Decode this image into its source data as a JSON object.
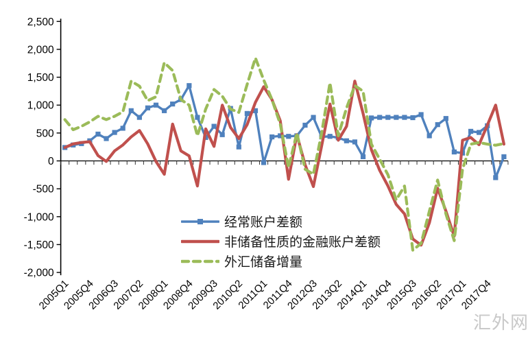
{
  "watermark": "汇外网",
  "chart_data": {
    "type": "line",
    "title": "",
    "xlabel": "",
    "ylabel": "",
    "grid": false,
    "legend_position": "inside-bottom-left",
    "ylim": [
      -2000,
      2500
    ],
    "y_ticks": [
      2500,
      2000,
      1500,
      1000,
      500,
      0,
      -500,
      -1000,
      -1500,
      -2000
    ],
    "x_tick_every": 3,
    "x_tick_labels": [
      "2005Q1",
      "2005Q4",
      "2006Q3",
      "2007Q2",
      "2008Q1",
      "2008Q4",
      "2009Q3",
      "2010Q2",
      "2011Q1",
      "2011Q4",
      "2012Q3",
      "2013Q2",
      "2014Q1",
      "2014Q4",
      "2015Q3",
      "2016Q2",
      "2017Q1",
      "2017Q4"
    ],
    "x": [
      "2005Q1",
      "2005Q2",
      "2005Q3",
      "2005Q4",
      "2006Q1",
      "2006Q2",
      "2006Q3",
      "2006Q4",
      "2007Q1",
      "2007Q2",
      "2007Q3",
      "2007Q4",
      "2008Q1",
      "2008Q2",
      "2008Q3",
      "2008Q4",
      "2009Q1",
      "2009Q2",
      "2009Q3",
      "2009Q4",
      "2010Q1",
      "2010Q2",
      "2010Q3",
      "2010Q4",
      "2011Q1",
      "2011Q2",
      "2011Q3",
      "2011Q4",
      "2012Q1",
      "2012Q2",
      "2012Q3",
      "2012Q4",
      "2013Q1",
      "2013Q2",
      "2013Q3",
      "2013Q4",
      "2014Q1",
      "2014Q2",
      "2014Q3",
      "2014Q4",
      "2015Q1",
      "2015Q2",
      "2015Q3",
      "2015Q4",
      "2016Q1",
      "2016Q2",
      "2016Q3",
      "2016Q4",
      "2017Q1",
      "2017Q2",
      "2017Q3",
      "2017Q4",
      "2018Q1",
      "2018Q2"
    ],
    "series": [
      {
        "name": "经常账户差额",
        "color": "#4F81BD",
        "marker": "square",
        "dash": null,
        "values": [
          240,
          285,
          310,
          360,
          480,
          400,
          510,
          585,
          900,
          780,
          950,
          1000,
          900,
          1020,
          1100,
          1350,
          780,
          420,
          620,
          470,
          940,
          250,
          850,
          900,
          -30,
          430,
          450,
          440,
          450,
          640,
          780,
          430,
          440,
          415,
          360,
          340,
          75,
          770,
          780,
          780,
          780,
          780,
          775,
          830,
          450,
          650,
          760,
          160,
          140,
          530,
          510,
          630,
          -300,
          75
        ]
      },
      {
        "name": "非储备性质的金融账户差额",
        "color": "#C0504D",
        "marker": null,
        "dash": null,
        "values": [
          240,
          305,
          330,
          345,
          95,
          -10,
          180,
          285,
          430,
          545,
          305,
          -10,
          -240,
          660,
          180,
          90,
          -450,
          575,
          260,
          1000,
          600,
          400,
          650,
          1050,
          1330,
          1100,
          720,
          -330,
          470,
          -70,
          -460,
          270,
          1020,
          370,
          620,
          1430,
          850,
          200,
          -170,
          -450,
          -780,
          -950,
          -1400,
          -1510,
          -1110,
          -490,
          -900,
          -1350,
          370,
          420,
          290,
          640,
          1000,
          300
        ]
      },
      {
        "name": "外汇储备增量",
        "color": "#9BBB59",
        "marker": null,
        "dash": [
          10,
          7
        ],
        "values": [
          740,
          560,
          620,
          700,
          800,
          740,
          800,
          880,
          1430,
          1340,
          1080,
          1150,
          1760,
          1620,
          1100,
          1000,
          450,
          930,
          1280,
          1160,
          930,
          870,
          1370,
          1845,
          1450,
          1100,
          660,
          -120,
          500,
          -150,
          -240,
          500,
          1400,
          450,
          950,
          1350,
          1250,
          300,
          30,
          -250,
          -700,
          -450,
          -1600,
          -1480,
          -900,
          -343,
          -950,
          -1430,
          -150,
          300,
          330,
          300,
          280,
          310
        ]
      }
    ]
  }
}
